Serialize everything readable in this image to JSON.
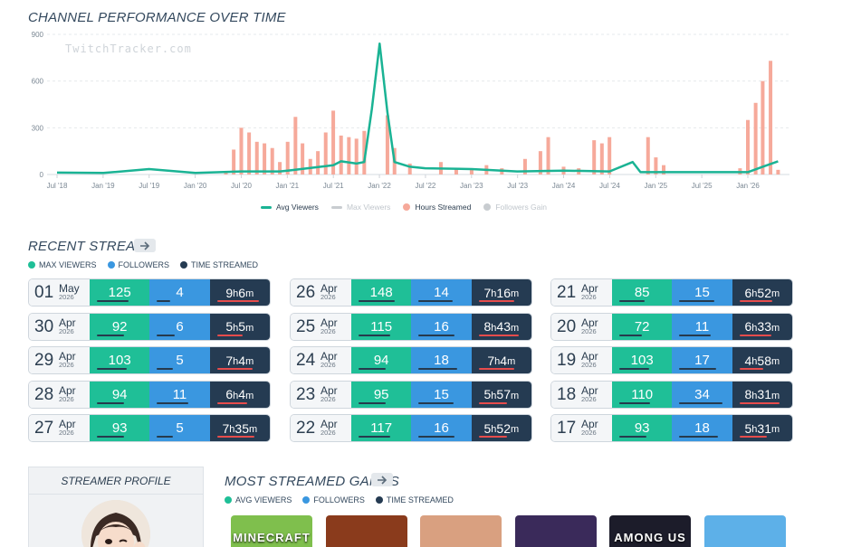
{
  "chart": {
    "title": "CHANNEL PERFORMANCE OVER TIME",
    "watermark": "TwitchTracker.com",
    "legend": [
      {
        "label": "Avg Viewers",
        "color": "#1ab394",
        "active": true,
        "kind": "line"
      },
      {
        "label": "Max Viewers",
        "color": "#c8ccd0",
        "active": false,
        "kind": "line"
      },
      {
        "label": "Hours Streamed",
        "color": "#f6a99a",
        "active": true,
        "kind": "dot"
      },
      {
        "label": "Followers Gain",
        "color": "#c8ccd0",
        "active": false,
        "kind": "dot"
      }
    ]
  },
  "chart_data": {
    "type": "bar+line",
    "x_tick_labels": [
      "Jul '18",
      "Jan '19",
      "Jul '19",
      "Jan '20",
      "Jul '20",
      "Jan '21",
      "Jul '21",
      "Jan '22",
      "Jul '22",
      "Jan '23",
      "Jul '23",
      "Jan '24",
      "Jul '24",
      "Jan '25",
      "Jul '25",
      "Jan '26"
    ],
    "y_ticks": [
      0,
      300,
      600,
      900
    ],
    "ylim": [
      0,
      900
    ],
    "series": [
      {
        "name": "Hours Streamed",
        "type": "bar",
        "color": "#f6a99a",
        "points": [
          [
            "2020-05-01",
            20
          ],
          [
            "2020-06-01",
            160
          ],
          [
            "2020-07-01",
            300
          ],
          [
            "2020-08-01",
            270
          ],
          [
            "2020-09-01",
            210
          ],
          [
            "2020-10-01",
            200
          ],
          [
            "2020-11-01",
            170
          ],
          [
            "2020-12-01",
            80
          ],
          [
            "2021-01-01",
            210
          ],
          [
            "2021-02-01",
            370
          ],
          [
            "2021-03-01",
            200
          ],
          [
            "2021-04-01",
            100
          ],
          [
            "2021-05-01",
            150
          ],
          [
            "2021-06-01",
            270
          ],
          [
            "2021-07-01",
            410
          ],
          [
            "2021-08-01",
            250
          ],
          [
            "2021-09-01",
            240
          ],
          [
            "2021-10-01",
            230
          ],
          [
            "2021-11-01",
            280
          ],
          [
            "2022-02-01",
            380
          ],
          [
            "2022-03-01",
            170
          ],
          [
            "2022-05-01",
            70
          ],
          [
            "2022-09-01",
            80
          ],
          [
            "2022-11-01",
            40
          ],
          [
            "2023-01-01",
            30
          ],
          [
            "2023-03-01",
            60
          ],
          [
            "2023-05-01",
            40
          ],
          [
            "2023-08-01",
            100
          ],
          [
            "2023-10-01",
            150
          ],
          [
            "2023-11-01",
            240
          ],
          [
            "2024-01-01",
            50
          ],
          [
            "2024-03-01",
            40
          ],
          [
            "2024-05-01",
            220
          ],
          [
            "2024-06-01",
            200
          ],
          [
            "2024-07-01",
            240
          ],
          [
            "2024-12-01",
            240
          ],
          [
            "2025-01-01",
            110
          ],
          [
            "2025-02-01",
            60
          ],
          [
            "2025-12-01",
            40
          ],
          [
            "2026-01-01",
            350
          ],
          [
            "2026-02-01",
            460
          ],
          [
            "2026-03-01",
            600
          ],
          [
            "2026-04-01",
            730
          ],
          [
            "2026-05-01",
            30
          ]
        ]
      },
      {
        "name": "Avg Viewers",
        "type": "line",
        "color": "#1ab394",
        "points": [
          [
            "2018-07-01",
            12
          ],
          [
            "2019-01-01",
            10
          ],
          [
            "2019-07-01",
            35
          ],
          [
            "2020-01-01",
            10
          ],
          [
            "2020-07-01",
            20
          ],
          [
            "2020-12-01",
            20
          ],
          [
            "2021-01-01",
            25
          ],
          [
            "2021-07-01",
            60
          ],
          [
            "2021-08-01",
            85
          ],
          [
            "2021-10-01",
            70
          ],
          [
            "2021-11-01",
            80
          ],
          [
            "2021-12-01",
            420
          ],
          [
            "2022-01-01",
            840
          ],
          [
            "2022-02-01",
            400
          ],
          [
            "2022-03-01",
            80
          ],
          [
            "2022-05-01",
            50
          ],
          [
            "2022-07-01",
            40
          ],
          [
            "2023-01-01",
            35
          ],
          [
            "2023-07-01",
            20
          ],
          [
            "2024-01-01",
            25
          ],
          [
            "2024-07-01",
            20
          ],
          [
            "2024-10-01",
            80
          ],
          [
            "2024-11-01",
            15
          ],
          [
            "2025-01-01",
            15
          ],
          [
            "2025-07-01",
            15
          ],
          [
            "2026-01-01",
            15
          ],
          [
            "2026-03-01",
            50
          ],
          [
            "2026-05-01",
            85
          ]
        ]
      }
    ]
  },
  "recent": {
    "title": "RECENT STREAMS",
    "keys": [
      {
        "label": "MAX VIEWERS",
        "color": "#1fbf97"
      },
      {
        "label": "FOLLOWERS",
        "color": "#3a97e0"
      },
      {
        "label": "TIME STREAMED",
        "color": "#253b52"
      }
    ],
    "streams": [
      [
        {
          "day": "01",
          "month": "May",
          "year": "2026",
          "viewers": "125",
          "followers": "4",
          "h": "9",
          "m": "6",
          "vbar": 0.7,
          "fbar": 0.3,
          "tbar": 0.9
        },
        {
          "day": "30",
          "month": "Apr",
          "year": "2026",
          "viewers": "92",
          "followers": "6",
          "h": "5",
          "m": "5",
          "vbar": 0.6,
          "fbar": 0.4,
          "tbar": 0.55
        },
        {
          "day": "29",
          "month": "Apr",
          "year": "2026",
          "viewers": "103",
          "followers": "5",
          "h": "7",
          "m": "4",
          "vbar": 0.65,
          "fbar": 0.35,
          "tbar": 0.75
        },
        {
          "day": "28",
          "month": "Apr",
          "year": "2026",
          "viewers": "94",
          "followers": "11",
          "h": "6",
          "m": "4",
          "vbar": 0.6,
          "fbar": 0.7,
          "tbar": 0.65
        },
        {
          "day": "27",
          "month": "Apr",
          "year": "2026",
          "viewers": "93",
          "followers": "5",
          "h": "7",
          "m": "35",
          "vbar": 0.6,
          "fbar": 0.35,
          "tbar": 0.8
        }
      ],
      [
        {
          "day": "26",
          "month": "Apr",
          "year": "2026",
          "viewers": "148",
          "followers": "14",
          "h": "7",
          "m": "16",
          "vbar": 0.8,
          "fbar": 0.75,
          "tbar": 0.75
        },
        {
          "day": "25",
          "month": "Apr",
          "year": "2026",
          "viewers": "115",
          "followers": "16",
          "h": "8",
          "m": "43",
          "vbar": 0.7,
          "fbar": 0.8,
          "tbar": 0.85
        },
        {
          "day": "24",
          "month": "Apr",
          "year": "2026",
          "viewers": "94",
          "followers": "18",
          "h": "7",
          "m": "4",
          "vbar": 0.6,
          "fbar": 0.85,
          "tbar": 0.75
        },
        {
          "day": "23",
          "month": "Apr",
          "year": "2026",
          "viewers": "95",
          "followers": "15",
          "h": "5",
          "m": "57",
          "vbar": 0.6,
          "fbar": 0.78,
          "tbar": 0.6
        },
        {
          "day": "22",
          "month": "Apr",
          "year": "2026",
          "viewers": "117",
          "followers": "16",
          "h": "5",
          "m": "52",
          "vbar": 0.7,
          "fbar": 0.8,
          "tbar": 0.6
        }
      ],
      [
        {
          "day": "21",
          "month": "Apr",
          "year": "2026",
          "viewers": "85",
          "followers": "15",
          "h": "6",
          "m": "52",
          "vbar": 0.55,
          "fbar": 0.78,
          "tbar": 0.7
        },
        {
          "day": "20",
          "month": "Apr",
          "year": "2026",
          "viewers": "72",
          "followers": "11",
          "h": "6",
          "m": "33",
          "vbar": 0.5,
          "fbar": 0.7,
          "tbar": 0.68
        },
        {
          "day": "19",
          "month": "Apr",
          "year": "2026",
          "viewers": "103",
          "followers": "17",
          "h": "4",
          "m": "58",
          "vbar": 0.65,
          "fbar": 0.82,
          "tbar": 0.5
        },
        {
          "day": "18",
          "month": "Apr",
          "year": "2026",
          "viewers": "110",
          "followers": "34",
          "h": "8",
          "m": "31",
          "vbar": 0.68,
          "fbar": 0.95,
          "tbar": 0.85
        },
        {
          "day": "17",
          "month": "Apr",
          "year": "2026",
          "viewers": "93",
          "followers": "18",
          "h": "5",
          "m": "31",
          "vbar": 0.6,
          "fbar": 0.85,
          "tbar": 0.58
        }
      ]
    ]
  },
  "profile": {
    "title": "STREAMER PROFILE"
  },
  "games": {
    "title": "MOST STREAMED GAMES",
    "keys": [
      {
        "label": "AVG VIEWERS",
        "color": "#1fbf97"
      },
      {
        "label": "FOLLOWERS",
        "color": "#3a97e0"
      },
      {
        "label": "TIME STREAMED",
        "color": "#253b52"
      }
    ],
    "tiles": [
      {
        "label": "MINECRAFT",
        "bg": "#7fbf4d"
      },
      {
        "label": "",
        "bg": "#8a3b1c"
      },
      {
        "label": "",
        "bg": "#d9a080"
      },
      {
        "label": "",
        "bg": "#3a2a5a"
      },
      {
        "label": "AMONG US",
        "bg": "#1c1c2a"
      },
      {
        "label": "",
        "bg": "#5db0e8"
      }
    ]
  }
}
